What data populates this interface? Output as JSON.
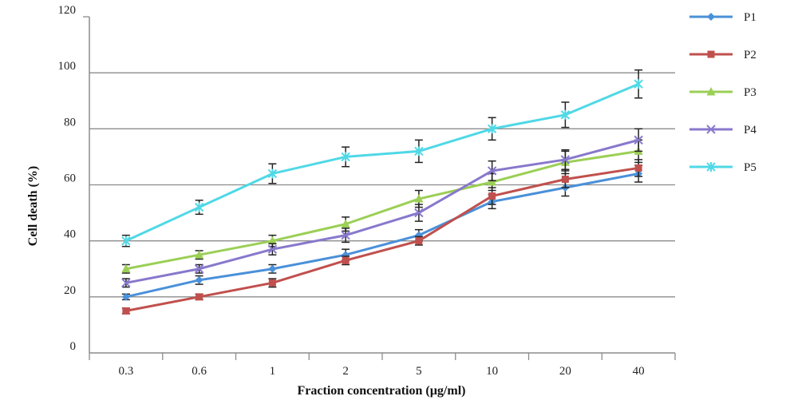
{
  "chart_data": {
    "type": "line",
    "title": "",
    "xlabel": "Fraction concentration (µg/ml)",
    "ylabel": "Cell death (%)",
    "categories": [
      "0.3",
      "0.6",
      "1",
      "2",
      "5",
      "10",
      "20",
      "40"
    ],
    "ylim": [
      0,
      120
    ],
    "yticks": [
      0,
      20,
      40,
      60,
      80,
      100,
      120
    ],
    "grid": "horizontal",
    "legend_position": "right",
    "series": [
      {
        "name": "P1",
        "color": "#4a90d9",
        "marker": "diamond",
        "values": [
          20,
          26,
          30,
          35,
          42,
          54,
          59,
          64
        ],
        "errors": [
          1,
          1.5,
          1.5,
          2,
          2,
          2.5,
          3,
          3
        ]
      },
      {
        "name": "P2",
        "color": "#c0504d",
        "marker": "square",
        "values": [
          15,
          20,
          25,
          33,
          40,
          56,
          62,
          66
        ],
        "errors": [
          1,
          1,
          1.5,
          1.5,
          1.5,
          3,
          3,
          3
        ]
      },
      {
        "name": "P3",
        "color": "#9bcf55",
        "marker": "triangle",
        "values": [
          30,
          35,
          40,
          46,
          55,
          61,
          68,
          72
        ],
        "errors": [
          1.5,
          1.5,
          2,
          2.5,
          3,
          3,
          4,
          4
        ]
      },
      {
        "name": "P4",
        "color": "#8878cc",
        "marker": "x",
        "values": [
          25,
          30,
          37,
          42,
          50,
          65,
          69,
          76
        ],
        "errors": [
          1.5,
          1.5,
          2,
          2.5,
          3,
          3.5,
          3.5,
          4
        ]
      },
      {
        "name": "P5",
        "color": "#4fd8e6",
        "marker": "asterisk",
        "values": [
          40,
          52,
          64,
          70,
          72,
          80,
          85,
          96
        ],
        "errors": [
          2,
          2.5,
          3.5,
          3.5,
          4,
          4,
          4.5,
          5
        ]
      }
    ]
  }
}
